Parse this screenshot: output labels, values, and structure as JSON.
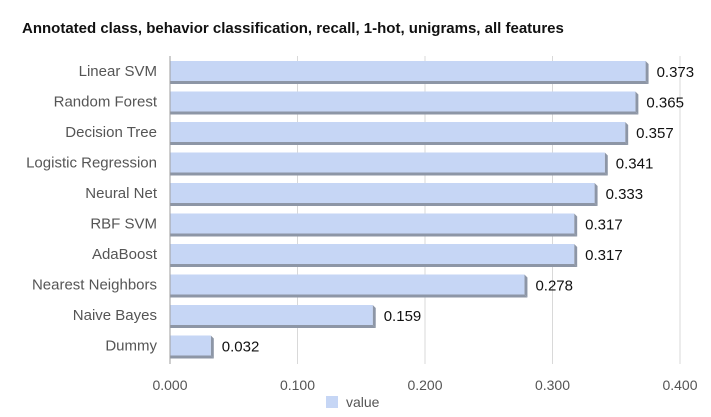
{
  "chart_data": {
    "type": "bar",
    "orientation": "horizontal",
    "title": "Annotated class, behavior classification, recall, 1-hot, unigrams, all features",
    "categories": [
      "Linear SVM",
      "Random Forest",
      "Decision Tree",
      "Logistic Regression",
      "Neural Net",
      "RBF SVM",
      "AdaBoost",
      "Nearest Neighbors",
      "Naive Bayes",
      "Dummy"
    ],
    "series": [
      {
        "name": "value",
        "values": [
          0.373,
          0.365,
          0.357,
          0.341,
          0.333,
          0.317,
          0.317,
          0.278,
          0.159,
          0.032
        ]
      }
    ],
    "value_labels": [
      "0.373",
      "0.365",
      "0.357",
      "0.341",
      "0.333",
      "0.317",
      "0.317",
      "0.278",
      "0.159",
      "0.032"
    ],
    "xlim": [
      0,
      0.4
    ],
    "x_ticks": [
      0,
      0.1,
      0.2,
      0.3,
      0.4
    ],
    "x_tick_labels": [
      "0.000",
      "0.100",
      "0.200",
      "0.300",
      "0.400"
    ],
    "grid": true,
    "legend_position": "bottom",
    "colors": {
      "bar": "#c6d6f5",
      "bar_shadow": "#8d96a6",
      "grid": "#d9d9d9"
    }
  }
}
